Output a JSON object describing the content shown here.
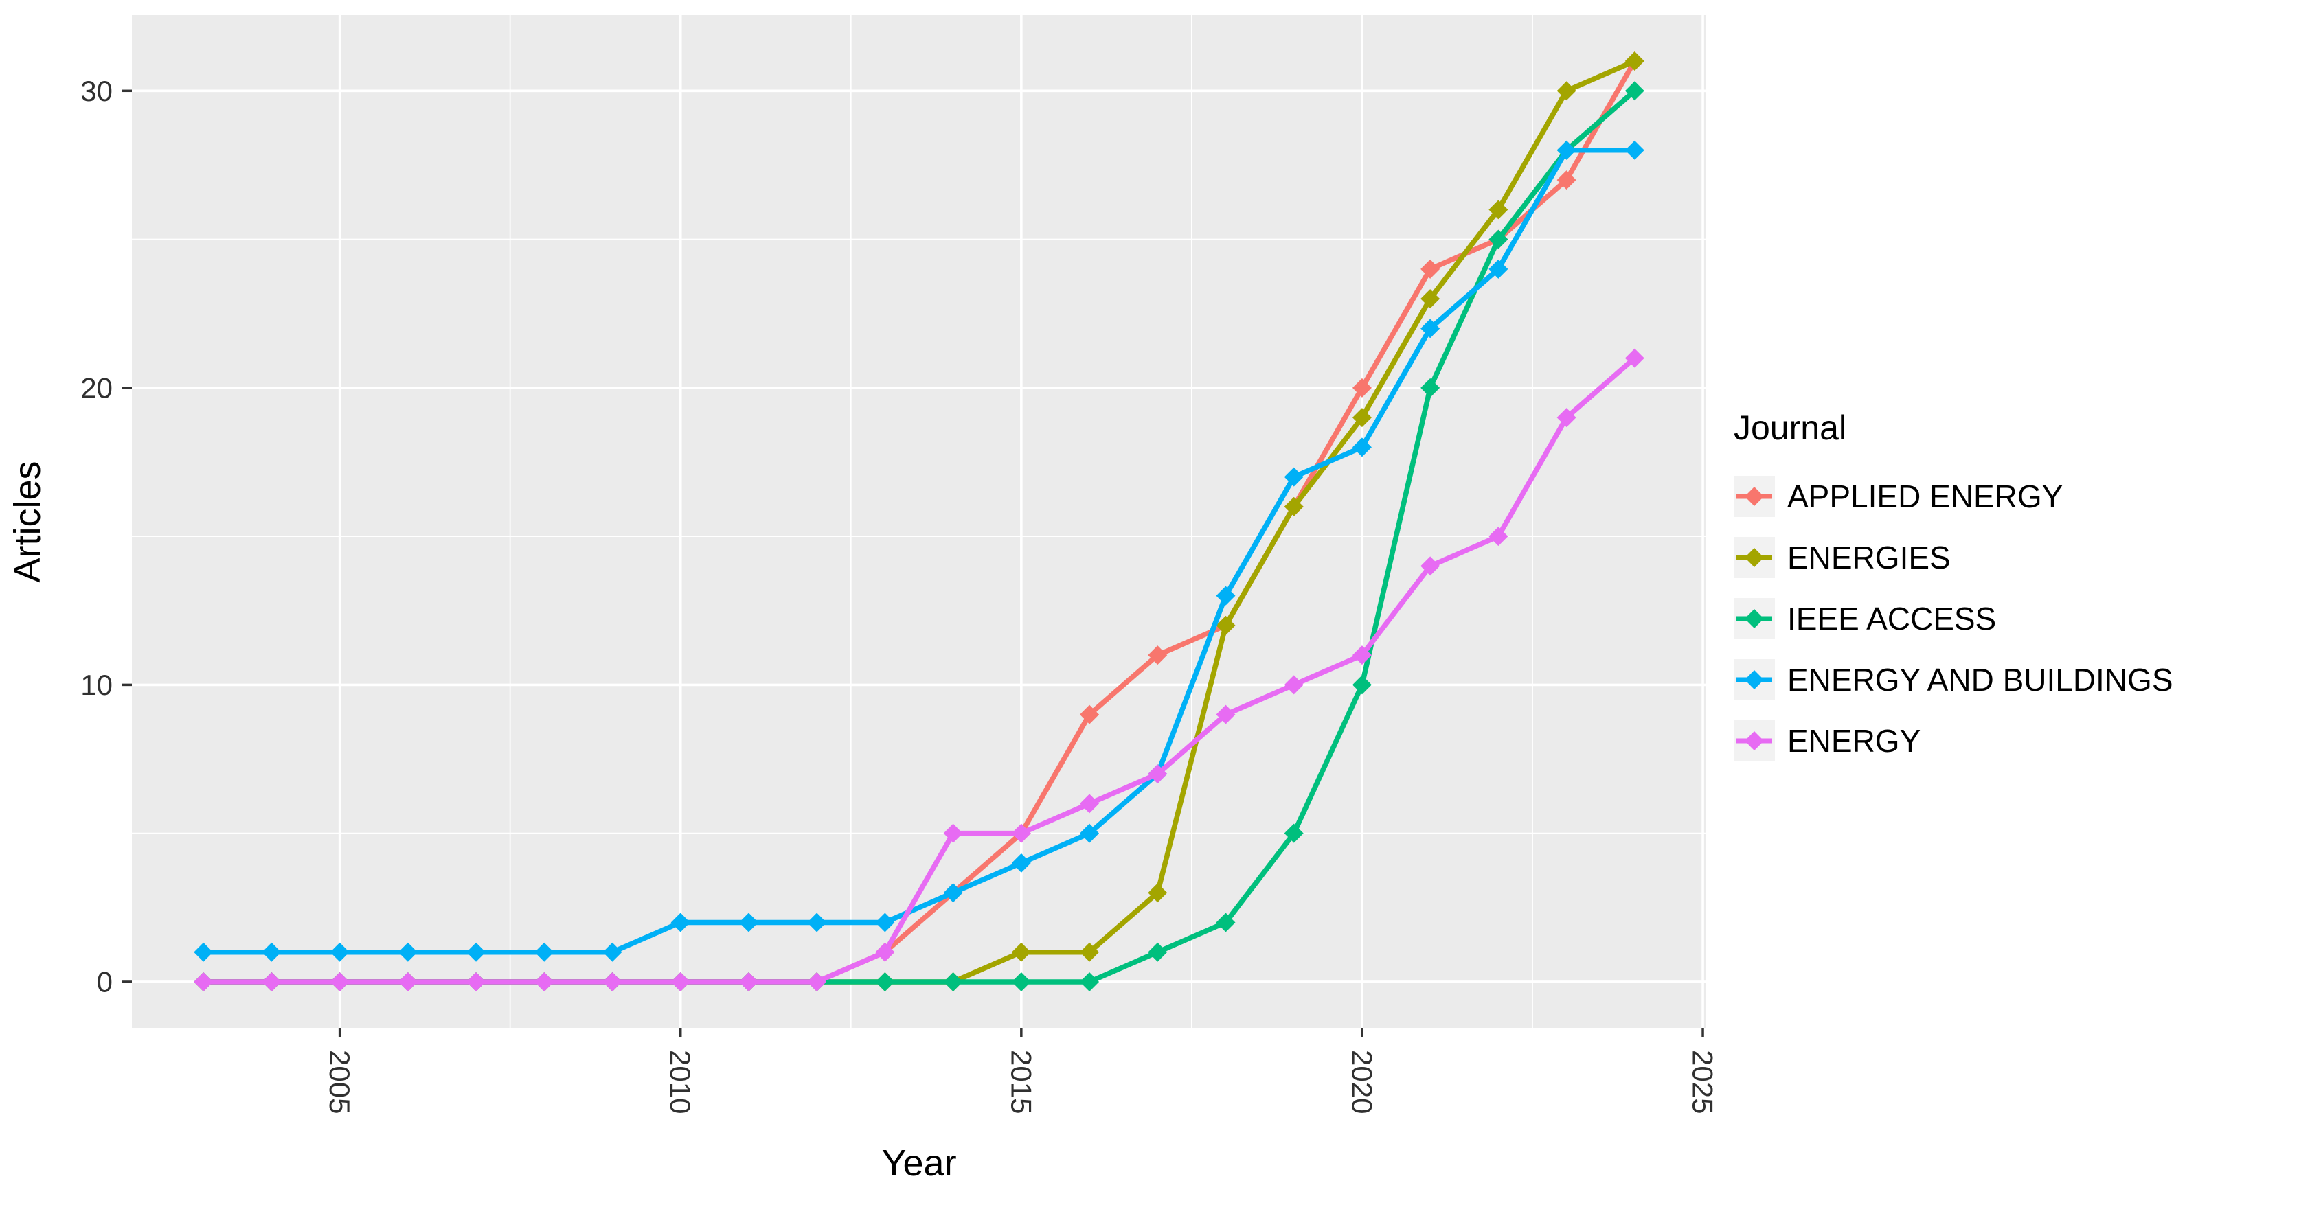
{
  "chart_data": {
    "type": "line",
    "title": "",
    "xlabel": "Year",
    "ylabel": "Articles",
    "legend_title": "Journal",
    "legend_position": "right",
    "grid": true,
    "x": [
      2003,
      2004,
      2005,
      2006,
      2007,
      2008,
      2009,
      2010,
      2011,
      2012,
      2013,
      2014,
      2015,
      2016,
      2017,
      2018,
      2019,
      2020,
      2021,
      2022,
      2023,
      2024
    ],
    "series": [
      {
        "name": "APPLIED ENERGY",
        "color": "#F8766D",
        "values": [
          0,
          0,
          0,
          0,
          0,
          0,
          0,
          0,
          0,
          0,
          1,
          3,
          5,
          9,
          11,
          12,
          16,
          20,
          24,
          25,
          27,
          31
        ]
      },
      {
        "name": "ENERGIES",
        "color": "#A3A500",
        "values": [
          0,
          0,
          0,
          0,
          0,
          0,
          0,
          0,
          0,
          0,
          0,
          0,
          1,
          1,
          3,
          12,
          16,
          19,
          23,
          26,
          30,
          31
        ]
      },
      {
        "name": "IEEE ACCESS",
        "color": "#00BF7D",
        "values": [
          0,
          0,
          0,
          0,
          0,
          0,
          0,
          0,
          0,
          0,
          0,
          0,
          0,
          0,
          1,
          2,
          5,
          10,
          20,
          25,
          28,
          30
        ]
      },
      {
        "name": "ENERGY AND BUILDINGS",
        "color": "#00B0F6",
        "values": [
          1,
          1,
          1,
          1,
          1,
          1,
          1,
          2,
          2,
          2,
          2,
          3,
          4,
          5,
          7,
          13,
          17,
          18,
          22,
          24,
          28,
          28
        ]
      },
      {
        "name": "ENERGY",
        "color": "#E76BF3",
        "values": [
          0,
          0,
          0,
          0,
          0,
          0,
          0,
          0,
          0,
          0,
          1,
          5,
          5,
          6,
          7,
          9,
          10,
          11,
          14,
          15,
          19,
          21
        ]
      }
    ],
    "x_ticks": [
      2005,
      2010,
      2015,
      2020,
      2025
    ],
    "x_minor_ticks": [
      2007.5,
      2012.5,
      2017.5,
      2022.5
    ],
    "y_ticks": [
      0,
      10,
      20,
      30
    ],
    "y_minor_ticks": [
      5,
      15,
      25
    ],
    "xlim": [
      2001.95,
      2025.05
    ],
    "ylim": [
      -1.55,
      32.55
    ],
    "panel_background": "#EBEBEB",
    "gridline_color": "#FFFFFF",
    "tick_mark_color": "#333333"
  }
}
